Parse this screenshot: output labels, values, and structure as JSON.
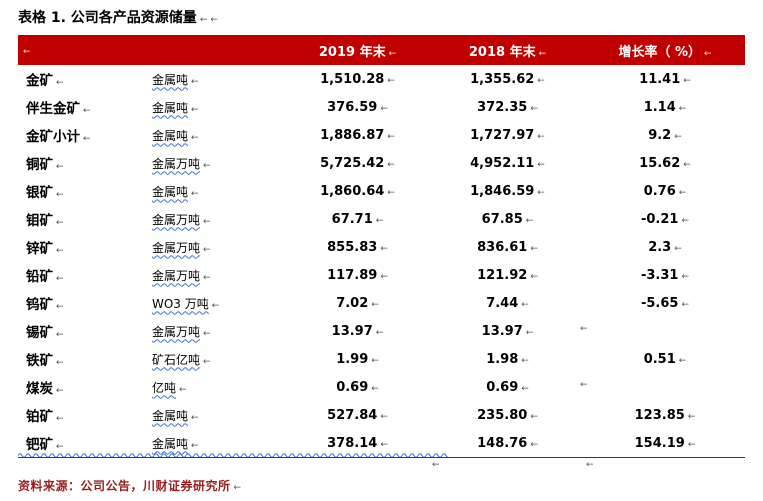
{
  "title": {
    "text": "表格  1. 公司各产品资源储量"
  },
  "marks": {
    "ret": "←"
  },
  "table": {
    "headers": {
      "label": "",
      "col2019": "2019 年末",
      "col2018": "2018 年末",
      "growth": "增长率（ %）"
    },
    "rows": [
      {
        "name": "金矿",
        "unit": "金属吨",
        "y2019": "1,510.28",
        "y2018": "1,355.62",
        "growth": "11.41"
      },
      {
        "name": "伴生金矿",
        "unit": "金属吨",
        "y2019": "376.59",
        "y2018": "372.35",
        "growth": "1.14"
      },
      {
        "name": "金矿小计",
        "unit": "金属吨",
        "y2019": "1,886.87",
        "y2018": "1,727.97",
        "growth": "9.2"
      },
      {
        "name": "铜矿",
        "unit": "金属万吨",
        "y2019": "5,725.42",
        "y2018": "4,952.11",
        "growth": "15.62"
      },
      {
        "name": "银矿",
        "unit": "金属吨",
        "y2019": "1,860.64",
        "y2018": "1,846.59",
        "growth": "0.76"
      },
      {
        "name": "钼矿",
        "unit": "金属万吨",
        "y2019": "67.71",
        "y2018": "67.85",
        "growth": "-0.21"
      },
      {
        "name": "锌矿",
        "unit": "金属万吨",
        "y2019": "855.83",
        "y2018": "836.61",
        "growth": "2.3"
      },
      {
        "name": "铅矿",
        "unit": "金属万吨",
        "y2019": "117.89",
        "y2018": "121.92",
        "growth": "-3.31"
      },
      {
        "name": "钨矿",
        "unit": "WO3 万吨",
        "y2019": "7.02",
        "y2018": "7.44",
        "growth": "-5.65"
      },
      {
        "name": "锡矿",
        "unit": "金属万吨",
        "y2019": "13.97",
        "y2018": "13.97",
        "growth": ""
      },
      {
        "name": "铁矿",
        "unit": "矿石亿吨",
        "y2019": "1.99",
        "y2018": "1.98",
        "growth": "0.51"
      },
      {
        "name": "煤炭",
        "unit": "亿吨",
        "y2019": "0.69",
        "y2018": "0.69",
        "growth": ""
      },
      {
        "name": "铂矿",
        "unit": "金属吨",
        "y2019": "527.84",
        "y2018": "235.80",
        "growth": "123.85"
      },
      {
        "name": "钯矿",
        "unit": "金属吨",
        "y2019": "378.14",
        "y2018": "148.76",
        "growth": "154.19"
      }
    ]
  },
  "source": {
    "text": "资料来源：公司公告，川财证券研究所"
  },
  "colors": {
    "header_bg": "#C00000",
    "header_text": "#FFFFFF",
    "body_text": "#000000",
    "source_text": "#99201E",
    "squiggle": "#3B6FD4"
  }
}
